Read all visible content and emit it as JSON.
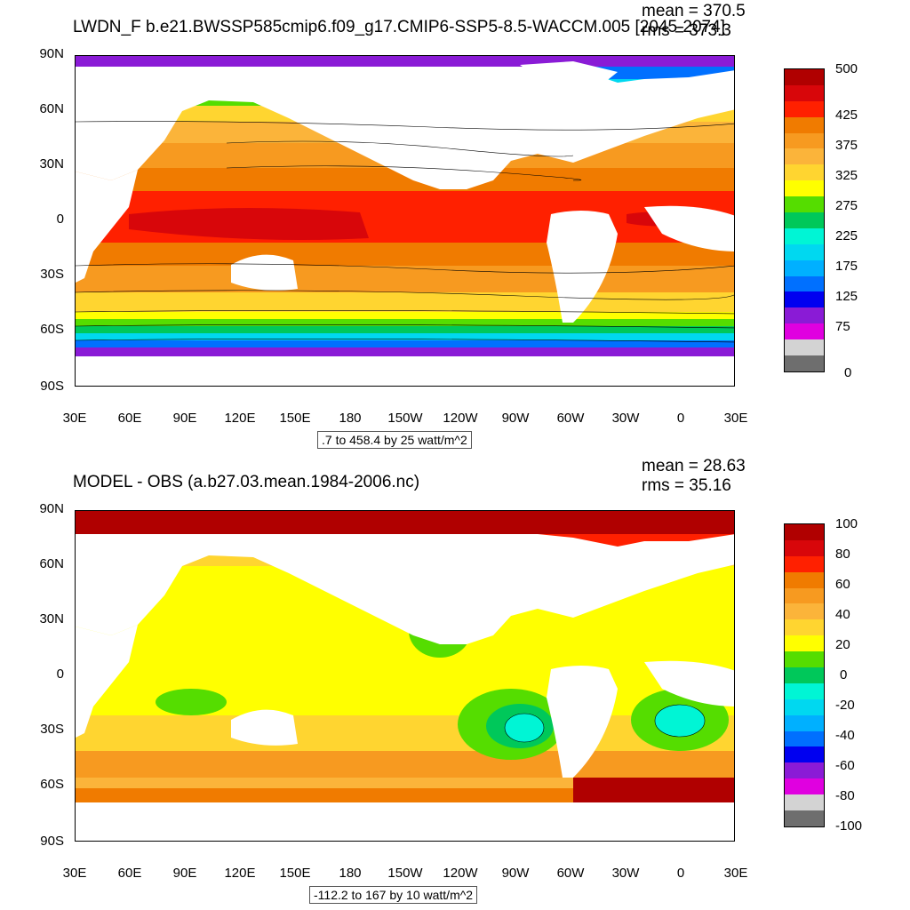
{
  "top_panel": {
    "title": "LWDN_F b.e21.BWSSP585cmip6.f09_g17.CMIP6-SSP5-8.5-WACCM.005 [2045-2074]",
    "mean_text": "mean = 370.5",
    "rms_text": "rms = 373.3",
    "range_text": ".7 to 458.4 by 25 watt/m^2",
    "colorbar_labels": [
      "500",
      "425",
      "375",
      "325",
      "275",
      "225",
      "175",
      "125",
      "75",
      "0"
    ],
    "colorbar_colors": [
      "#b00000",
      "#d8060a",
      "#ff2000",
      "#f07b00",
      "#f79a20",
      "#fbb43a",
      "#ffd530",
      "#ffff00",
      "#55dd00",
      "#00c85a",
      "#00f5d5",
      "#00d8f0",
      "#00b0ff",
      "#0070ff",
      "#0000f0",
      "#8a1bd6",
      "#e000e0",
      "#d3d3d3",
      "#6e6e6e"
    ]
  },
  "bottom_panel": {
    "title": "MODEL - OBS (a.b27.03.mean.1984-2006.nc)",
    "mean_text": "mean = 28.63",
    "rms_text": "rms = 35.16",
    "range_text": "-112.2 to 167 by 10 watt/m^2",
    "colorbar_labels": [
      "100",
      "80",
      "60",
      "40",
      "20",
      "0",
      "-20",
      "-40",
      "-60",
      "-80",
      "-100"
    ],
    "colorbar_colors": [
      "#b00000",
      "#d8060a",
      "#ff2000",
      "#f07b00",
      "#f79a20",
      "#fbb43a",
      "#ffd530",
      "#ffff00",
      "#55dd00",
      "#00c85a",
      "#00f5d5",
      "#00d8f0",
      "#00b0ff",
      "#0070ff",
      "#0000f0",
      "#8a1bd6",
      "#e000e0",
      "#d3d3d3",
      "#6e6e6e"
    ]
  },
  "axes": {
    "lat_labels": [
      "90N",
      "60N",
      "30N",
      "0",
      "30S",
      "60S",
      "90S"
    ],
    "lon_labels": [
      "30E",
      "60E",
      "90E",
      "120E",
      "150E",
      "180",
      "150W",
      "120W",
      "90W",
      "60W",
      "30W",
      "0",
      "30E"
    ]
  }
}
